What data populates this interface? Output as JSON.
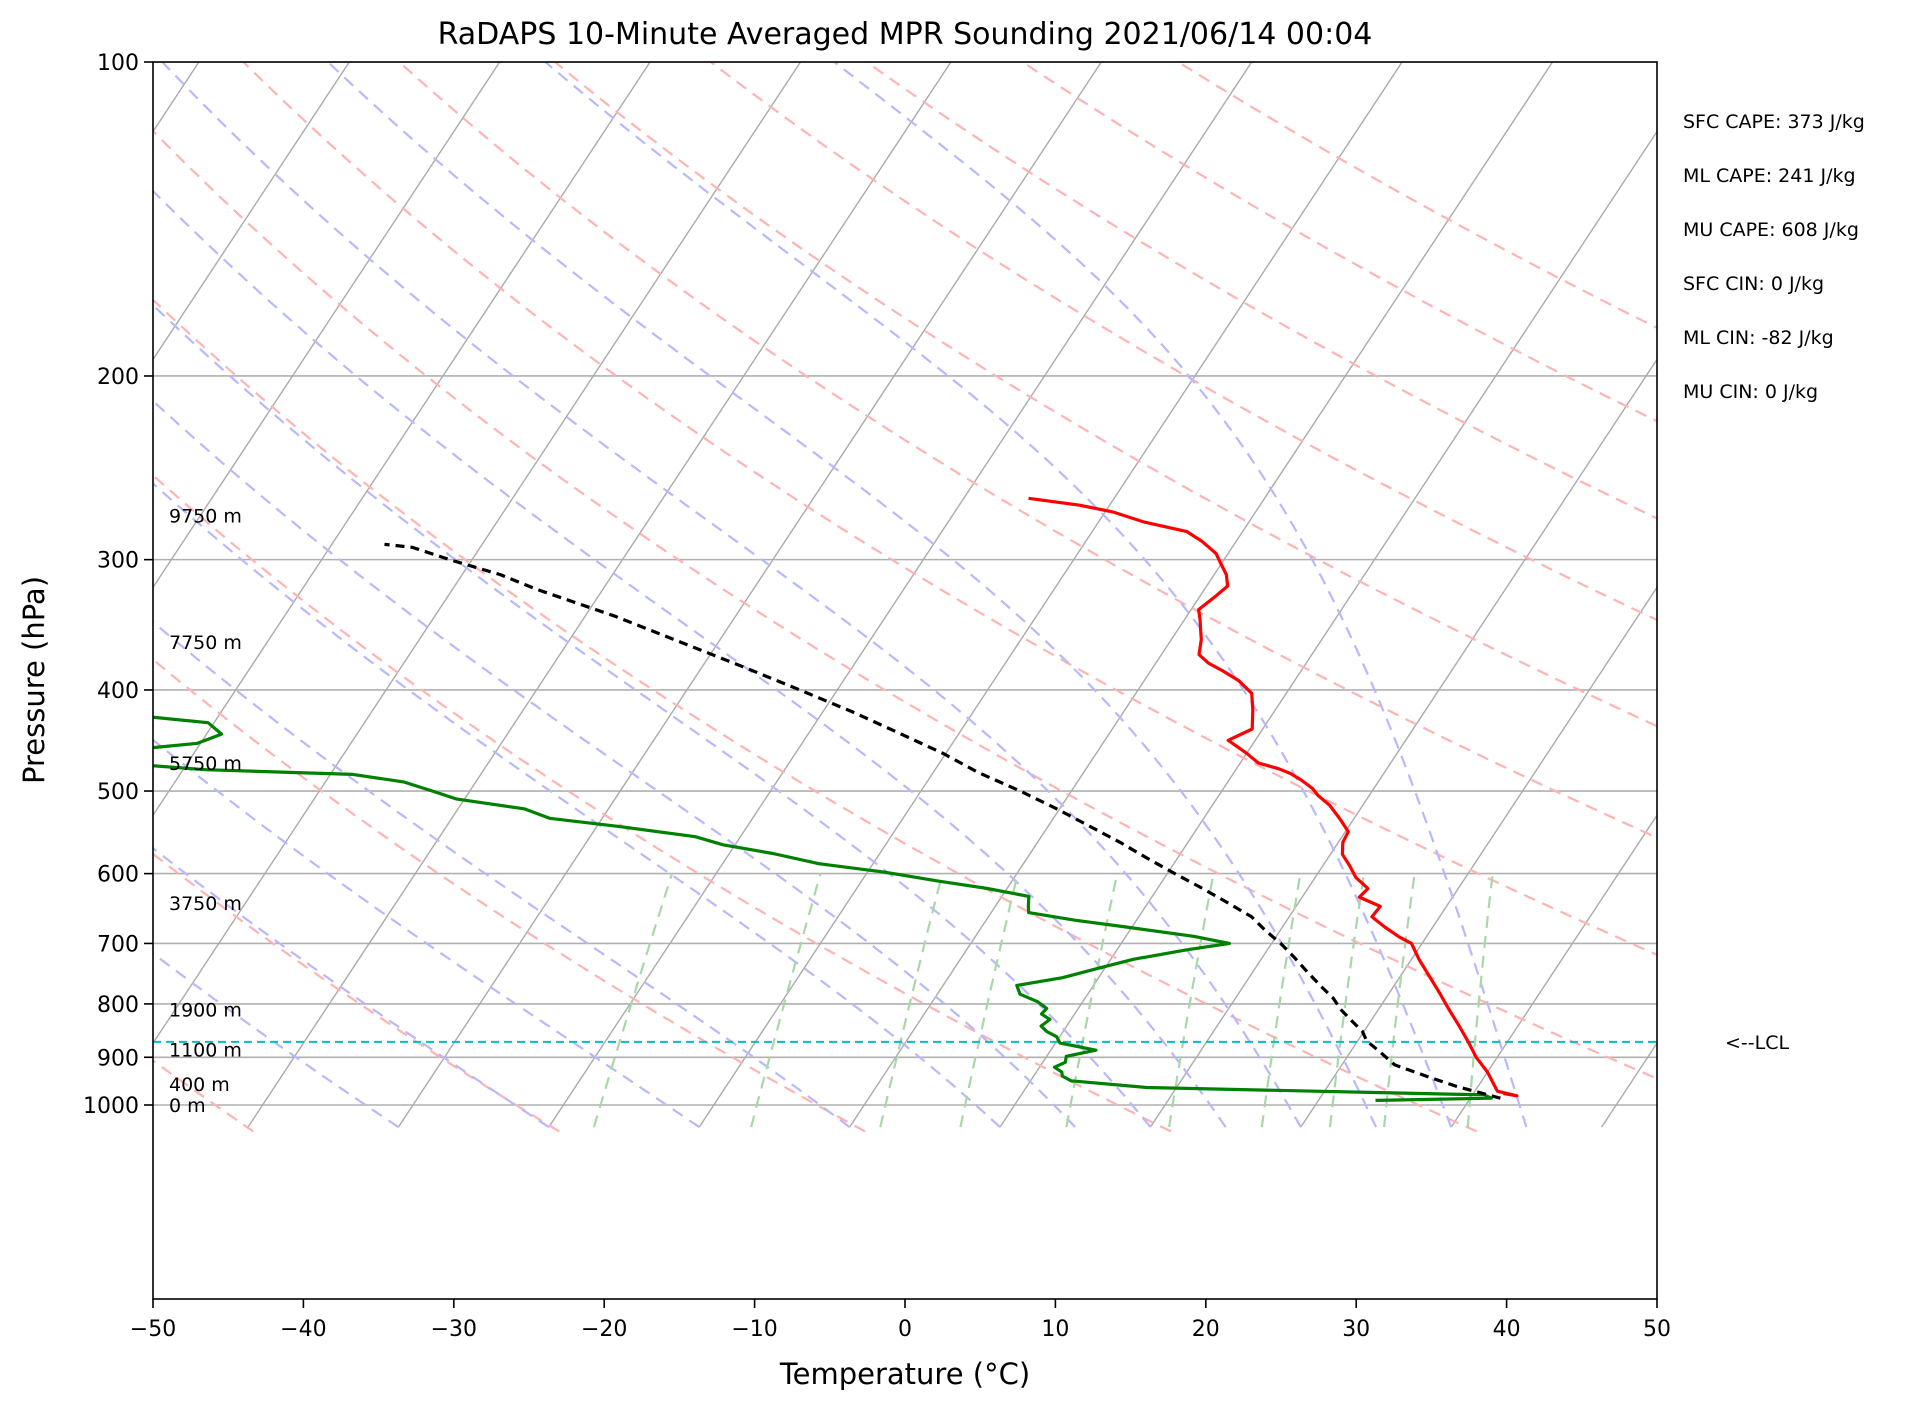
{
  "chart_data": {
    "type": "line",
    "title": "RaDAPS 10-Minute Averaged MPR Sounding 2021/06/14 00:04",
    "xlabel": "Temperature (°C)",
    "ylabel": "Pressure (hPa)",
    "xlim": [
      -50,
      50
    ],
    "ylim": [
      1050,
      100
    ],
    "y_scale": "log",
    "skew": "skew-T log-p",
    "grid": true,
    "x_ticks": [
      -50,
      -40,
      -30,
      -20,
      -10,
      0,
      10,
      20,
      30,
      40,
      50
    ],
    "x_tick_labels": [
      "−50",
      "−40",
      "−30",
      "−20",
      "−10",
      "0",
      "10",
      "20",
      "30",
      "40",
      "50"
    ],
    "y_ticks": [
      1000,
      900,
      800,
      700,
      600,
      500,
      400,
      300,
      200,
      100
    ],
    "y_tick_labels": [
      "1000",
      "900",
      "800",
      "700",
      "600",
      "500",
      "400",
      "300",
      "200",
      "100"
    ],
    "series": [
      {
        "type": "temperature",
        "color": "#ff0000",
        "points": [
          [
            32.0,
            975
          ],
          [
            33.0,
            980
          ],
          [
            31.5,
            970
          ],
          [
            30.0,
            930
          ],
          [
            28.6,
            900
          ],
          [
            27.4,
            870
          ],
          [
            26.1,
            840
          ],
          [
            24.7,
            810
          ],
          [
            23.3,
            780
          ],
          [
            21.8,
            750
          ],
          [
            20.5,
            725
          ],
          [
            19.3,
            700
          ],
          [
            18.2,
            690
          ],
          [
            16.8,
            675
          ],
          [
            15.5,
            660
          ],
          [
            15.6,
            645
          ],
          [
            13.8,
            632
          ],
          [
            14.0,
            620
          ],
          [
            12.7,
            605
          ],
          [
            11.8,
            590
          ],
          [
            10.8,
            575
          ],
          [
            10.3,
            560
          ],
          [
            10.2,
            547
          ],
          [
            9.1,
            532
          ],
          [
            7.8,
            516
          ],
          [
            6.6,
            505
          ],
          [
            5.9,
            497
          ],
          [
            4.8,
            488
          ],
          [
            3.8,
            481
          ],
          [
            2.8,
            476
          ],
          [
            1.2,
            470
          ],
          [
            0.0,
            460
          ],
          [
            -1.8,
            447
          ],
          [
            -0.7,
            436
          ],
          [
            -1.5,
            418
          ],
          [
            -2.3,
            403
          ],
          [
            -3.7,
            392
          ],
          [
            -5.3,
            383
          ],
          [
            -6.5,
            377
          ],
          [
            -7.5,
            370
          ],
          [
            -8.0,
            358
          ],
          [
            -8.5,
            350
          ],
          [
            -9.0,
            342
          ],
          [
            -9.5,
            335
          ],
          [
            -9.0,
            326
          ],
          [
            -8.6,
            318
          ],
          [
            -9.2,
            310
          ],
          [
            -10.0,
            303
          ],
          [
            -10.8,
            296
          ],
          [
            -12.3,
            288
          ],
          [
            -13.7,
            282
          ],
          [
            -17.0,
            276
          ],
          [
            -19.5,
            270
          ],
          [
            -22.0,
            266
          ],
          [
            -25.7,
            262
          ]
        ]
      },
      {
        "type": "dewpoint",
        "color": "#008000",
        "points": [
          [
            23.8,
            990
          ],
          [
            31.4,
            985
          ],
          [
            30.8,
            978
          ],
          [
            8.0,
            962
          ],
          [
            2.7,
            948
          ],
          [
            1.9,
            938
          ],
          [
            1.7,
            930
          ],
          [
            1.0,
            920
          ],
          [
            1.5,
            910
          ],
          [
            1.3,
            898
          ],
          [
            3.0,
            886
          ],
          [
            0.3,
            872
          ],
          [
            -0.2,
            860
          ],
          [
            -1.1,
            850
          ],
          [
            -1.7,
            840
          ],
          [
            -1.4,
            828
          ],
          [
            -2.2,
            818
          ],
          [
            -2.1,
            808
          ],
          [
            -3.0,
            796
          ],
          [
            -4.5,
            783
          ],
          [
            -5.1,
            768
          ],
          [
            -2.4,
            755
          ],
          [
            -0.5,
            740
          ],
          [
            1.5,
            725
          ],
          [
            4.6,
            710
          ],
          [
            7.2,
            700
          ],
          [
            4.5,
            689
          ],
          [
            -0.4,
            675
          ],
          [
            -4.1,
            665
          ],
          [
            -7.5,
            654
          ],
          [
            -7.8,
            645
          ],
          [
            -8.2,
            631
          ],
          [
            -11.3,
            620
          ],
          [
            -14.9,
            610
          ],
          [
            -18.9,
            598
          ],
          [
            -23.6,
            587
          ],
          [
            -27.1,
            574
          ],
          [
            -30.8,
            563
          ],
          [
            -33.0,
            553
          ],
          [
            -38.4,
            541
          ],
          [
            -43.5,
            531
          ],
          [
            -45.6,
            520
          ],
          [
            -50.5,
            509
          ],
          [
            -52.5,
            500
          ],
          [
            -54.8,
            490
          ],
          [
            -58.5,
            482
          ],
          [
            -68.5,
            477
          ],
          [
            -77.5,
            467
          ],
          [
            -74.0,
            456
          ],
          [
            -70.2,
            450
          ],
          [
            -69.0,
            441
          ],
          [
            -70.4,
            430
          ],
          [
            -74.2,
            425
          ],
          [
            -79.5,
            417
          ],
          [
            -85.6,
            410
          ],
          [
            -92.0,
            400
          ],
          [
            -97.0,
            394
          ],
          [
            -103.0,
            388
          ],
          [
            -106.0,
            381
          ],
          [
            -109.5,
            373
          ],
          [
            -113.0,
            367
          ],
          [
            -117.5,
            362
          ],
          [
            -124.0,
            357
          ],
          [
            -130.0,
            353
          ],
          [
            -137.0,
            348
          ],
          [
            -144.0,
            344
          ],
          [
            -152.0,
            340
          ],
          [
            -161.0,
            335
          ],
          [
            -170.0,
            329
          ],
          [
            -178.0,
            323
          ],
          [
            -186.0,
            318
          ],
          [
            -195.0,
            312
          ],
          [
            -204.0,
            306
          ],
          [
            -214.0,
            300
          ],
          [
            -223.0,
            296
          ],
          [
            -232.0,
            292
          ]
        ]
      },
      {
        "type": "parcel",
        "color": "#000000",
        "dashed": true,
        "points": [
          [
            32.0,
            985
          ],
          [
            28.6,
            960
          ],
          [
            26.3,
            940
          ],
          [
            23.5,
            915
          ],
          [
            22.0,
            890
          ],
          [
            20.6,
            868
          ],
          [
            19.9,
            850
          ],
          [
            18.7,
            830
          ],
          [
            17.5,
            810
          ],
          [
            16.5,
            790
          ],
          [
            15.2,
            770
          ],
          [
            13.6,
            745
          ],
          [
            12.0,
            720
          ],
          [
            10.6,
            700
          ],
          [
            9.0,
            680
          ],
          [
            7.5,
            660
          ],
          [
            5.3,
            640
          ],
          [
            3.0,
            620
          ],
          [
            0.5,
            600
          ],
          [
            -2.0,
            580
          ],
          [
            -4.5,
            560
          ],
          [
            -7.3,
            540
          ],
          [
            -10.2,
            520
          ],
          [
            -13.4,
            500
          ],
          [
            -17.0,
            480
          ],
          [
            -20.2,
            460
          ],
          [
            -24.0,
            440
          ],
          [
            -28.0,
            420
          ],
          [
            -32.5,
            400
          ],
          [
            -37.3,
            380
          ],
          [
            -42.5,
            360
          ],
          [
            -48.0,
            340
          ],
          [
            -54.5,
            320
          ],
          [
            -57.5,
            310
          ],
          [
            -61.5,
            300
          ],
          [
            -64.5,
            292
          ],
          [
            -66.5,
            290
          ]
        ]
      }
    ],
    "lcl": {
      "pressure_hPa": 870,
      "label": "<--LCL"
    },
    "height_labels": [
      {
        "label": "0 m",
        "pressure_hPa": 1000
      },
      {
        "label": "400 m",
        "pressure_hPa": 955
      },
      {
        "label": "1100 m",
        "pressure_hPa": 885
      },
      {
        "label": "1900 m",
        "pressure_hPa": 810
      },
      {
        "label": "3750 m",
        "pressure_hPa": 640
      },
      {
        "label": "5750 m",
        "pressure_hPa": 470
      },
      {
        "label": "7750 m",
        "pressure_hPa": 360
      },
      {
        "label": "9750 m",
        "pressure_hPa": 272
      }
    ],
    "stats": [
      {
        "label": "SFC CAPE: 373 J/kg"
      },
      {
        "label": "ML CAPE: 241 J/kg"
      },
      {
        "label": "MU CAPE: 608 J/kg"
      },
      {
        "label": "SFC CIN: 0 J/kg"
      },
      {
        "label": "ML CIN: -82 J/kg"
      },
      {
        "label": "MU CIN: 0 J/kg"
      }
    ],
    "reference_lines": {
      "dry_adiabats_theta_K": [
        200,
        220,
        240,
        260,
        280,
        300,
        320,
        340,
        360,
        380,
        400,
        420,
        440,
        460
      ],
      "moist_adiabats_start_C": [
        -40,
        -30,
        -20,
        -10,
        0,
        5,
        10,
        15,
        20,
        25,
        30,
        35
      ],
      "mixing_ratios_g_per_kg": [
        0.4,
        1,
        2,
        3,
        5,
        8,
        12,
        16,
        20,
        28
      ],
      "isotherm_color": "#aaaaaa",
      "dry_adiabat_color": "#ffb3b3",
      "moist_adiabat_color": "#b8b8ff",
      "mixing_ratio_color": "#a8d8a8",
      "lcl_color": "#00c0c0"
    }
  }
}
